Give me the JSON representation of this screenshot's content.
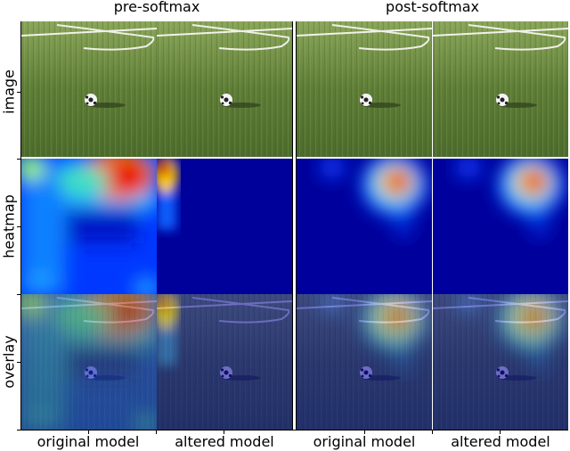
{
  "groups": [
    {
      "title": "pre-softmax"
    },
    {
      "title": "post-softmax"
    }
  ],
  "columns": [
    {
      "label": "original model"
    },
    {
      "label": "altered model"
    },
    {
      "label": "original model"
    },
    {
      "label": "altered model"
    }
  ],
  "rows": [
    {
      "label": "image"
    },
    {
      "label": "heatmap"
    },
    {
      "label": "overlay"
    }
  ],
  "colors": {
    "grass": "#5f7f3a",
    "heat_low": "#00008f",
    "heat_high": "#c80000"
  }
}
